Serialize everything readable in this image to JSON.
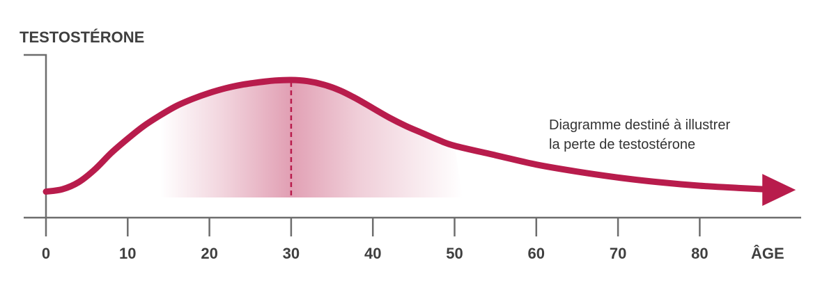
{
  "chart_data": {
    "type": "line",
    "ylabel": "TESTOSTÉRONE",
    "xlabel": "ÂGE",
    "x_ticks": [
      0,
      10,
      20,
      30,
      40,
      50,
      60,
      70,
      80
    ],
    "xlim": [
      0,
      92
    ],
    "ylim": [
      0,
      100
    ],
    "y_ticks_shown": false,
    "grid": false,
    "series": [
      {
        "x": [
          0,
          2,
          4,
          6,
          8,
          10,
          12,
          14,
          16,
          18,
          20,
          22,
          24,
          26,
          28,
          30,
          32,
          34,
          36,
          38,
          40,
          42,
          44,
          46,
          48,
          50,
          55,
          60,
          65,
          70,
          75,
          80,
          85,
          88
        ],
        "y": [
          5,
          7,
          13,
          24,
          38,
          50,
          61,
          70,
          78,
          84,
          89,
          93,
          96,
          98,
          99.5,
          100,
          99,
          96,
          91,
          84,
          76,
          68,
          61,
          55,
          49,
          44,
          36,
          28,
          22,
          17,
          13,
          10,
          8,
          7
        ],
        "color": "#b81c4c"
      }
    ],
    "peak": {
      "x": 30,
      "y": 100
    },
    "highlight_range": [
      14,
      51
    ],
    "arrow_end": true,
    "annotation": [
      "Diagramme destiné à illustrer",
      "la perte de testostérone"
    ],
    "colors": {
      "curve": "#b81c4c",
      "shading": "#b81c4c",
      "axis": "#6d6d6d",
      "text": "#3f3f3f"
    }
  }
}
